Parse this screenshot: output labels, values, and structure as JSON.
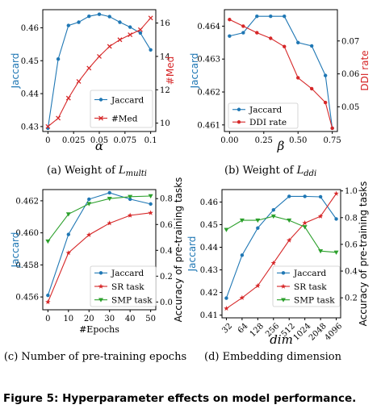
{
  "figure_caption": "Figure 5: Hyperparameter effects on model performance.",
  "colors": {
    "blue": "#1f77b4",
    "red": "#d62728",
    "green": "#2ca02c"
  },
  "chart_data": [
    {
      "type": "line",
      "caption": "(a) Weight of L_multi",
      "caption_main": "(a) Weight of ",
      "caption_sym": "L",
      "caption_sub": "multi",
      "xlabel": "α",
      "ylabel_left": "Jaccard",
      "ylabel_right": "#Med",
      "x": [
        0,
        0.01,
        0.02,
        0.03,
        0.04,
        0.05,
        0.06,
        0.07,
        0.08,
        0.09,
        0.1
      ],
      "xticks": [
        "0",
        "0.025",
        "0.05",
        "0.075",
        "0.1"
      ],
      "xlim": [
        0,
        0.1
      ],
      "yticks_left": [
        "0.43",
        "0.44",
        "0.45",
        "0.46"
      ],
      "ylim_left": [
        0.4285,
        0.4655
      ],
      "yticks_right": [
        "10",
        "12",
        "14",
        "16"
      ],
      "ylim_right": [
        9.5,
        16.8
      ],
      "legend": "bottom-right",
      "series": [
        {
          "name": "Jaccard",
          "axis": "left",
          "color": "#1f77b4",
          "marker": "dot",
          "values": [
            0.4295,
            0.4505,
            0.4607,
            0.4617,
            0.4635,
            0.4641,
            0.4634,
            0.4617,
            0.4602,
            0.4584,
            0.4533
          ]
        },
        {
          "name": "#Med",
          "axis": "right",
          "color": "#d62728",
          "marker": "x",
          "values": [
            9.8,
            10.3,
            11.5,
            12.5,
            13.3,
            14.0,
            14.6,
            15.0,
            15.3,
            15.6,
            16.3
          ]
        }
      ]
    },
    {
      "type": "line",
      "caption": "(b) Weight of L_ddi",
      "caption_main": "(b) Weight of ",
      "caption_sym": "L",
      "caption_sub": "ddi",
      "xlabel": "β",
      "ylabel_left": "Jaccard",
      "ylabel_right": "DDI rate",
      "x": [
        0,
        0.1,
        0.2,
        0.3,
        0.4,
        0.5,
        0.6,
        0.7,
        0.75
      ],
      "xticks": [
        "0.00",
        "0.25",
        "0.50",
        "0.75"
      ],
      "xlim": [
        0,
        0.75
      ],
      "yticks_left": [
        "0.461",
        "0.462",
        "0.463",
        "0.464"
      ],
      "ylim_left": [
        0.4608,
        0.4645
      ],
      "yticks_right": [
        "0.05",
        "0.06",
        "0.07"
      ],
      "ylim_right": [
        0.0425,
        0.0795
      ],
      "legend": "bottom-left",
      "series": [
        {
          "name": "Jaccard",
          "axis": "left",
          "color": "#1f77b4",
          "marker": "dot",
          "values": [
            0.4637,
            0.4638,
            0.4643,
            0.4643,
            0.4643,
            0.4635,
            0.4634,
            0.4625,
            0.4609
          ]
        },
        {
          "name": "DDI rate",
          "axis": "right",
          "color": "#d62728",
          "marker": "dot",
          "values": [
            0.0765,
            0.0745,
            0.0725,
            0.0708,
            0.0683,
            0.0588,
            0.0555,
            0.0513,
            0.0435
          ]
        }
      ]
    },
    {
      "type": "line",
      "caption": "(c) Number of pre-training epochs",
      "xlabel": "#Epochs",
      "ylabel_left": "Jaccard",
      "ylabel_right": "Accuracy of pre-training tasks",
      "x": [
        0,
        10,
        20,
        30,
        40,
        50
      ],
      "xticks": [
        "0",
        "10",
        "20",
        "30",
        "40",
        "50"
      ],
      "xlim": [
        0,
        50
      ],
      "yticks_left": [
        "0.456",
        "0.458",
        "0.460",
        "0.462"
      ],
      "ylim_left": [
        0.4552,
        0.4627
      ],
      "yticks_right": [
        "0.0",
        "0.2",
        "0.4",
        "0.6",
        "0.8"
      ],
      "ylim_right": [
        -0.06,
        0.87
      ],
      "legend": "bottom-right",
      "series": [
        {
          "name": "Jaccard",
          "axis": "left",
          "color": "#1f77b4",
          "marker": "dot",
          "values": [
            0.4561,
            0.4599,
            0.4621,
            0.4625,
            0.4621,
            0.4618
          ]
        },
        {
          "name": "SR task",
          "axis": "right",
          "color": "#d62728",
          "marker": "star",
          "values": [
            0.0,
            0.38,
            0.52,
            0.61,
            0.67,
            0.69
          ]
        },
        {
          "name": "SMP task",
          "axis": "right",
          "color": "#2ca02c",
          "marker": "tri",
          "values": [
            0.47,
            0.68,
            0.76,
            0.8,
            0.815,
            0.82
          ]
        }
      ]
    },
    {
      "type": "line",
      "caption": "(d) Embedding dimension",
      "xlabel": "dim",
      "ylabel_left": "Jaccard",
      "ylabel_right": "Accuracy of pre-training tasks",
      "x": [
        32,
        64,
        128,
        256,
        512,
        1024,
        2048,
        4096
      ],
      "xticks": [
        "32",
        "64",
        "128",
        "256",
        "512",
        "1024",
        "2048",
        "4096"
      ],
      "xscale": "log2",
      "yticks_left": [
        "0.41",
        "0.42",
        "0.43",
        "0.44",
        "0.45",
        "0.46"
      ],
      "ylim_left": [
        0.4088,
        0.4655
      ],
      "yticks_right": [
        "0.2",
        "0.4",
        "0.6",
        "0.8",
        "1.0"
      ],
      "ylim_right": [
        0.05,
        1.01
      ],
      "legend": "bottom-right",
      "series": [
        {
          "name": "Jaccard",
          "axis": "left",
          "color": "#1f77b4",
          "marker": "dot",
          "values": [
            0.4175,
            0.4365,
            0.4485,
            0.4565,
            0.4625,
            0.4625,
            0.4623,
            0.4525
          ]
        },
        {
          "name": "SR task",
          "axis": "right",
          "color": "#d62728",
          "marker": "star",
          "values": [
            0.12,
            0.2,
            0.29,
            0.46,
            0.63,
            0.76,
            0.81,
            0.98
          ]
        },
        {
          "name": "SMP task",
          "axis": "right",
          "color": "#2ca02c",
          "marker": "tri",
          "values": [
            0.71,
            0.78,
            0.78,
            0.81,
            0.78,
            0.73,
            0.55,
            0.54
          ]
        }
      ]
    }
  ]
}
